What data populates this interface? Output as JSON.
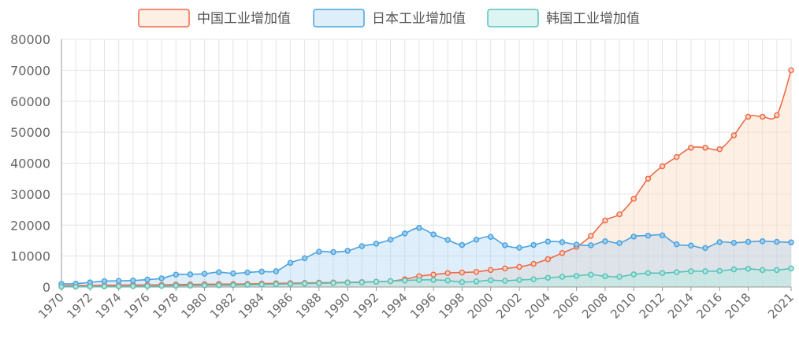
{
  "chart_data": {
    "type": "area",
    "x": [
      1970,
      1971,
      1972,
      1973,
      1974,
      1975,
      1976,
      1977,
      1978,
      1979,
      1980,
      1981,
      1982,
      1983,
      1984,
      1985,
      1986,
      1987,
      1988,
      1989,
      1990,
      1991,
      1992,
      1993,
      1994,
      1995,
      1996,
      1997,
      1998,
      1999,
      2000,
      2001,
      2002,
      2003,
      2004,
      2005,
      2006,
      2007,
      2008,
      2009,
      2010,
      2011,
      2012,
      2013,
      2014,
      2015,
      2016,
      2017,
      2018,
      2019,
      2020,
      2021
    ],
    "x_tick_labels": [
      "1970",
      "1972",
      "1974",
      "1976",
      "1978",
      "1980",
      "1982",
      "1984",
      "1986",
      "1988",
      "1990",
      "1992",
      "1994",
      "1996",
      "1998",
      "2000",
      "2002",
      "2004",
      "2006",
      "2008",
      "2010",
      "2012",
      "2014",
      "2016",
      "2018",
      "2021"
    ],
    "ylim": [
      0,
      80000
    ],
    "y_tick_labels": [
      "0",
      "10000",
      "20000",
      "30000",
      "40000",
      "50000",
      "60000",
      "70000",
      "80000"
    ],
    "grid": true,
    "legend_position": "top-center",
    "series": [
      {
        "name": "中国工业增加值",
        "color": "#ee6a4a",
        "fill": "rgba(250,220,195,0.45)",
        "values": [
          400,
          450,
          500,
          550,
          600,
          650,
          650,
          700,
          800,
          850,
          900,
          950,
          950,
          1000,
          1100,
          1200,
          1250,
          1300,
          1400,
          1450,
          1500,
          1600,
          1700,
          1900,
          2500,
          3500,
          4000,
          4500,
          4700,
          4900,
          5500,
          6000,
          6500,
          7500,
          9000,
          11000,
          13000,
          16500,
          21500,
          23500,
          28500,
          35000,
          39000,
          42000,
          45000,
          45000,
          44500,
          49000,
          55000,
          55000,
          55500,
          70000
        ]
      },
      {
        "name": "日本工业增加值",
        "color": "#4aa3df",
        "fill": "rgba(160,205,240,0.35)",
        "values": [
          1000,
          1100,
          1500,
          1900,
          2000,
          2100,
          2400,
          2800,
          4000,
          4100,
          4300,
          4800,
          4400,
          4700,
          5000,
          5100,
          7800,
          9300,
          11400,
          11300,
          11700,
          13200,
          14000,
          15300,
          17300,
          19100,
          17000,
          15200,
          13600,
          15300,
          16200,
          13500,
          12700,
          13600,
          14700,
          14500,
          13700,
          13500,
          14800,
          14200,
          16300,
          16600,
          16700,
          13800,
          13400,
          12600,
          14500,
          14300,
          14600,
          14800,
          14600,
          14400
        ]
      },
      {
        "name": "韩国工业增加值",
        "color": "#5bc2b8",
        "fill": "rgba(180,232,226,0.45)",
        "values": [
          100,
          100,
          150,
          200,
          200,
          250,
          300,
          350,
          400,
          450,
          500,
          550,
          600,
          700,
          800,
          900,
          1000,
          1100,
          1200,
          1300,
          1400,
          1500,
          1700,
          1900,
          2100,
          2300,
          2300,
          2100,
          1600,
          1800,
          2200,
          2000,
          2300,
          2500,
          3000,
          3300,
          3600,
          4000,
          3500,
          3300,
          4100,
          4500,
          4500,
          4800,
          5100,
          5100,
          5200,
          5700,
          5900,
          5500,
          5500,
          6000
        ]
      }
    ]
  }
}
